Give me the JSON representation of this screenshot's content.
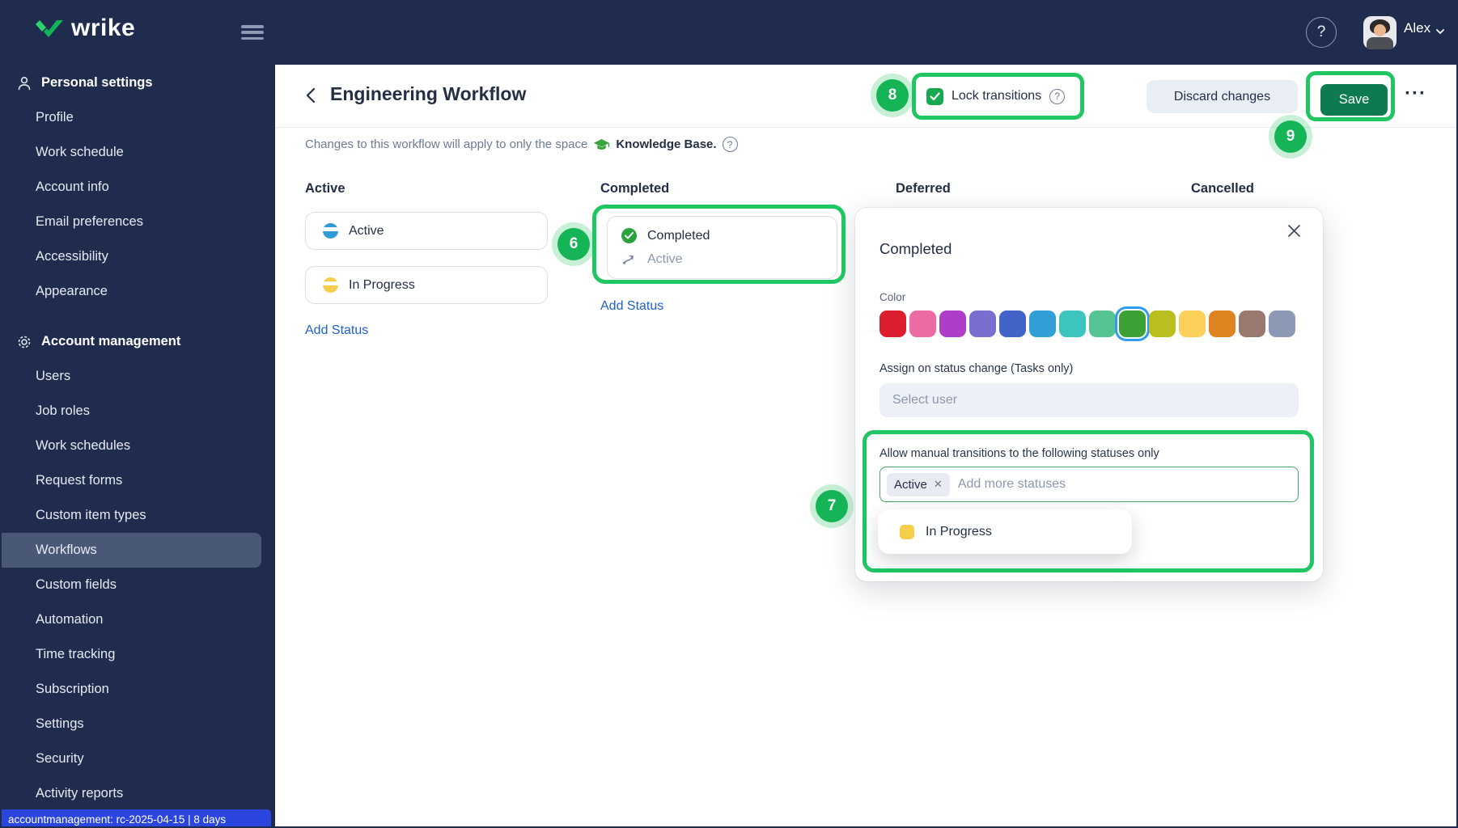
{
  "topbar": {
    "logo_text": "wrike",
    "user_name": "Alex"
  },
  "sidebar": {
    "sections": [
      {
        "label": "Personal settings",
        "icon": "person-icon",
        "items": [
          "Profile",
          "Work schedule",
          "Account info",
          "Email preferences",
          "Accessibility",
          "Appearance"
        ]
      },
      {
        "label": "Account management",
        "icon": "gear-icon",
        "items": [
          "Users",
          "Job roles",
          "Work schedules",
          "Request forms",
          "Custom item types",
          "Workflows",
          "Custom fields",
          "Automation",
          "Time tracking",
          "Subscription",
          "Settings",
          "Security",
          "Activity reports"
        ]
      }
    ],
    "selected_item": "Workflows",
    "footer_badge": "accountmanagement: rc-2025-04-15 | 8 days"
  },
  "header": {
    "title": "Engineering Workflow",
    "lock_transitions_label": "Lock transitions",
    "discard_label": "Discard changes",
    "save_label": "Save",
    "ellipsis": "···"
  },
  "info_bar": {
    "text": "Changes to this workflow will apply to only the space",
    "space_name": "Knowledge Base."
  },
  "board": {
    "columns": [
      {
        "name": "Active",
        "statuses": [
          {
            "label": "Active",
            "color": "#2e9bd6"
          },
          {
            "label": "In Progress",
            "color": "#f7ce4b"
          }
        ],
        "add_label": "Add Status"
      },
      {
        "name": "Completed",
        "statuses": [
          {
            "label": "Completed",
            "color": "#2ba23c",
            "transition": "Active"
          }
        ],
        "add_label": "Add Status"
      },
      {
        "name": "Deferred"
      },
      {
        "name": "Cancelled"
      }
    ]
  },
  "popup": {
    "title": "Completed",
    "color_label": "Color",
    "swatches": [
      "#dc1f2e",
      "#ec6ba5",
      "#ae3ec9",
      "#7a6fd0",
      "#4263c7",
      "#319fd6",
      "#3cc4bf",
      "#55c392",
      "#3ba135",
      "#b9bf1f",
      "#fbd15b",
      "#de831f",
      "#99786f",
      "#8c99b5"
    ],
    "selected_swatch_index": 8,
    "assign_label": "Assign on status change (Tasks only)",
    "select_user_placeholder": "Select user",
    "transitions_label": "Allow manual transitions to the following statuses only",
    "chip_label": "Active",
    "add_more_placeholder": "Add more statuses",
    "dropdown_item": {
      "label": "In Progress",
      "color": "#f7ce4b"
    }
  },
  "annotations": {
    "badge6": "6",
    "badge7": "7",
    "badge8": "8",
    "badge9": "9"
  }
}
